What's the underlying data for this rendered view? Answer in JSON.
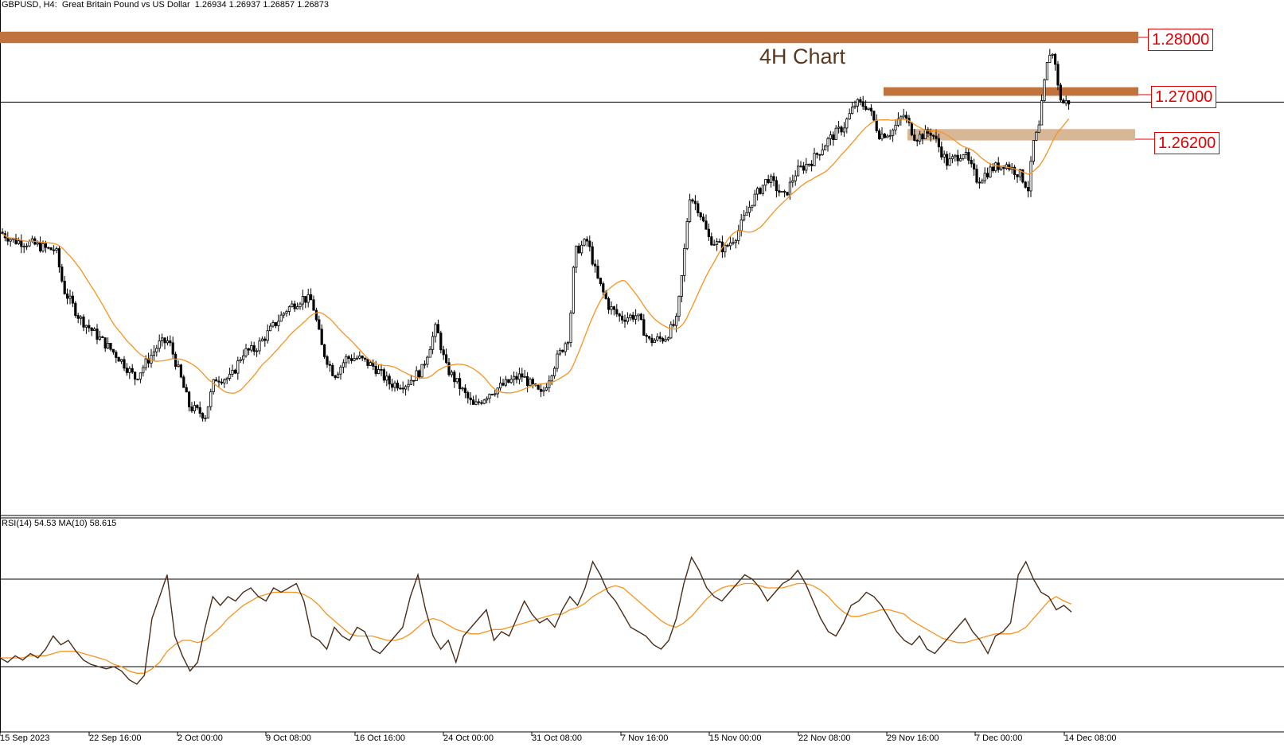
{
  "header": {
    "symbol": "GBPUSD",
    "timeframe": "H4",
    "description": "Great Britain Pound vs US Dollar",
    "open": "1.26934",
    "high": "1.26937",
    "low": "1.26857",
    "close": "1.26873"
  },
  "annotation": "4H Chart",
  "rsi_header": {
    "label": "RSI(14) 54.53 MA(10) 58.615"
  },
  "colors": {
    "candle": "#000000",
    "ma": "#f7931e",
    "rsi": "#4a2e1a",
    "zone_top": "#c0733c",
    "zone_mid": "#c0733c",
    "zone_low": "#d8b797",
    "level_label": "#e00000"
  },
  "chart_data": [
    {
      "type": "candlestick",
      "title": "GBPUSD, H4",
      "ylim": [
        1.204,
        1.2815
      ],
      "x_tick_labels": [
        "15 Sep 2023",
        "22 Sep 16:00",
        "2 Oct 00:00",
        "9 Oct 08:00",
        "16 Oct 16:00",
        "24 Oct 00:00",
        "31 Oct 08:00",
        "7 Nov 16:00",
        "15 Nov 00:00",
        "22 Nov 08:00",
        "29 Nov 16:00",
        "7 Dec 00:00",
        "14 Dec 08:00"
      ],
      "price_path": [
        [
          0,
          1.246
        ],
        [
          18,
          1.2445
        ],
        [
          40,
          1.244
        ],
        [
          60,
          1.243
        ],
        [
          70,
          1.243
        ],
        [
          80,
          1.236
        ],
        [
          100,
          1.231
        ],
        [
          125,
          1.2275
        ],
        [
          150,
          1.224
        ],
        [
          170,
          1.2205
        ],
        [
          185,
          1.2235
        ],
        [
          200,
          1.2265
        ],
        [
          212,
          1.227
        ],
        [
          225,
          1.2215
        ],
        [
          238,
          1.2155
        ],
        [
          258,
          1.214
        ],
        [
          270,
          1.2205
        ],
        [
          290,
          1.2205
        ],
        [
          305,
          1.225
        ],
        [
          320,
          1.2255
        ],
        [
          340,
          1.229
        ],
        [
          360,
          1.2325
        ],
        [
          380,
          1.2345
        ],
        [
          392,
          1.234
        ],
        [
          405,
          1.2255
        ],
        [
          420,
          1.221
        ],
        [
          435,
          1.224
        ],
        [
          450,
          1.224
        ],
        [
          470,
          1.2225
        ],
        [
          490,
          1.2195
        ],
        [
          510,
          1.2195
        ],
        [
          530,
          1.222
        ],
        [
          548,
          1.2295
        ],
        [
          560,
          1.2225
        ],
        [
          575,
          1.2195
        ],
        [
          595,
          1.2155
        ],
        [
          615,
          1.218
        ],
        [
          635,
          1.2195
        ],
        [
          655,
          1.221
        ],
        [
          680,
          1.2175
        ],
        [
          700,
          1.224
        ],
        [
          715,
          1.228
        ],
        [
          722,
          1.2425
        ],
        [
          738,
          1.2445
        ],
        [
          750,
          1.238
        ],
        [
          765,
          1.233
        ],
        [
          780,
          1.231
        ],
        [
          800,
          1.2315
        ],
        [
          815,
          1.227
        ],
        [
          835,
          1.2275
        ],
        [
          850,
          1.2305
        ],
        [
          858,
          1.24
        ],
        [
          866,
          1.2525
        ],
        [
          878,
          1.25
        ],
        [
          890,
          1.245
        ],
        [
          910,
          1.243
        ],
        [
          925,
          1.2455
        ],
        [
          945,
          1.2515
        ],
        [
          965,
          1.2555
        ],
        [
          985,
          1.252
        ],
        [
          1000,
          1.2565
        ],
        [
          1020,
          1.2585
        ],
        [
          1040,
          1.262
        ],
        [
          1060,
          1.2645
        ],
        [
          1075,
          1.2685
        ],
        [
          1090,
          1.268
        ],
        [
          1105,
          1.263
        ],
        [
          1120,
          1.2635
        ],
        [
          1135,
          1.2665
        ],
        [
          1150,
          1.2625
        ],
        [
          1170,
          1.2635
        ],
        [
          1190,
          1.258
        ],
        [
          1210,
          1.26
        ],
        [
          1228,
          1.255
        ],
        [
          1245,
          1.257
        ],
        [
          1262,
          1.258
        ],
        [
          1282,
          1.256
        ],
        [
          1292,
          1.2535
        ],
        [
          1298,
          1.2615
        ],
        [
          1305,
          1.264
        ],
        [
          1312,
          1.272
        ],
        [
          1318,
          1.2775
        ],
        [
          1325,
          1.2765
        ],
        [
          1330,
          1.27
        ],
        [
          1336,
          1.2685
        ],
        [
          1342,
          1.2688
        ],
        [
          1346,
          1.2687
        ]
      ],
      "moving_average_color": "orange",
      "zones": [
        {
          "from": 1.279,
          "to": 1.281,
          "color": "#c0733c",
          "label": "1.28000"
        },
        {
          "from": 1.2698,
          "to": 1.2713,
          "color": "#c0733c",
          "label": "1.27000"
        },
        {
          "from": 1.262,
          "to": 1.264,
          "color": "#d8b797",
          "label": "1.26200"
        }
      ],
      "horizontal_line": 1.2687
    },
    {
      "type": "line",
      "title": "RSI(14) 54.53 MA(10) 58.615",
      "ylim": [
        0,
        100
      ],
      "levels": [
        70,
        30
      ],
      "series": [
        {
          "name": "RSI(14)",
          "values": [
            34,
            32,
            35,
            33,
            36,
            34,
            38,
            44,
            40,
            42,
            37,
            33,
            31,
            30,
            29,
            30,
            28,
            24,
            22,
            26,
            52,
            62,
            72,
            44,
            35,
            28,
            32,
            48,
            62,
            58,
            62,
            60,
            64,
            66,
            62,
            60,
            66,
            64,
            66,
            68,
            60,
            44,
            42,
            38,
            48,
            44,
            42,
            48,
            46,
            38,
            36,
            40,
            44,
            48,
            62,
            72,
            56,
            44,
            38,
            42,
            32,
            44,
            48,
            52,
            56,
            42,
            46,
            44,
            52,
            60,
            54,
            50,
            52,
            48,
            56,
            62,
            58,
            66,
            78,
            72,
            64,
            60,
            54,
            48,
            46,
            44,
            40,
            38,
            42,
            52,
            68,
            80,
            74,
            66,
            62,
            60,
            64,
            68,
            72,
            70,
            66,
            60,
            64,
            68,
            70,
            74,
            68,
            60,
            52,
            46,
            44,
            50,
            58,
            60,
            64,
            62,
            58,
            52,
            46,
            42,
            40,
            44,
            38,
            36,
            40,
            44,
            48,
            52,
            46,
            42,
            36,
            44,
            46,
            50,
            72,
            78,
            70,
            64,
            62,
            56,
            58,
            55
          ]
        },
        {
          "name": "MA(10)",
          "values": [
            34,
            34,
            34,
            34,
            35,
            35,
            35,
            36,
            37,
            37,
            37,
            36,
            35,
            34,
            33,
            31,
            30,
            28,
            27,
            27,
            29,
            32,
            37,
            40,
            42,
            42,
            41,
            42,
            45,
            48,
            52,
            55,
            58,
            60,
            62,
            63,
            64,
            64,
            64,
            64,
            63,
            61,
            58,
            54,
            51,
            48,
            45,
            44,
            44,
            44,
            43,
            42,
            42,
            43,
            45,
            48,
            51,
            52,
            51,
            49,
            47,
            46,
            45,
            45,
            46,
            47,
            47,
            48,
            49,
            50,
            51,
            52,
            53,
            54,
            54,
            56,
            57,
            59,
            62,
            64,
            66,
            67,
            66,
            63,
            60,
            57,
            54,
            51,
            49,
            48,
            50,
            53,
            57,
            61,
            64,
            66,
            67,
            67,
            68,
            68,
            67,
            66,
            66,
            66,
            67,
            68,
            68,
            67,
            65,
            62,
            58,
            55,
            53,
            53,
            54,
            55,
            56,
            56,
            55,
            54,
            51,
            49,
            47,
            45,
            43,
            42,
            41,
            41,
            42,
            43,
            44,
            45,
            45,
            45,
            46,
            48,
            52,
            56,
            60,
            62,
            60,
            58.615
          ]
        }
      ]
    }
  ]
}
